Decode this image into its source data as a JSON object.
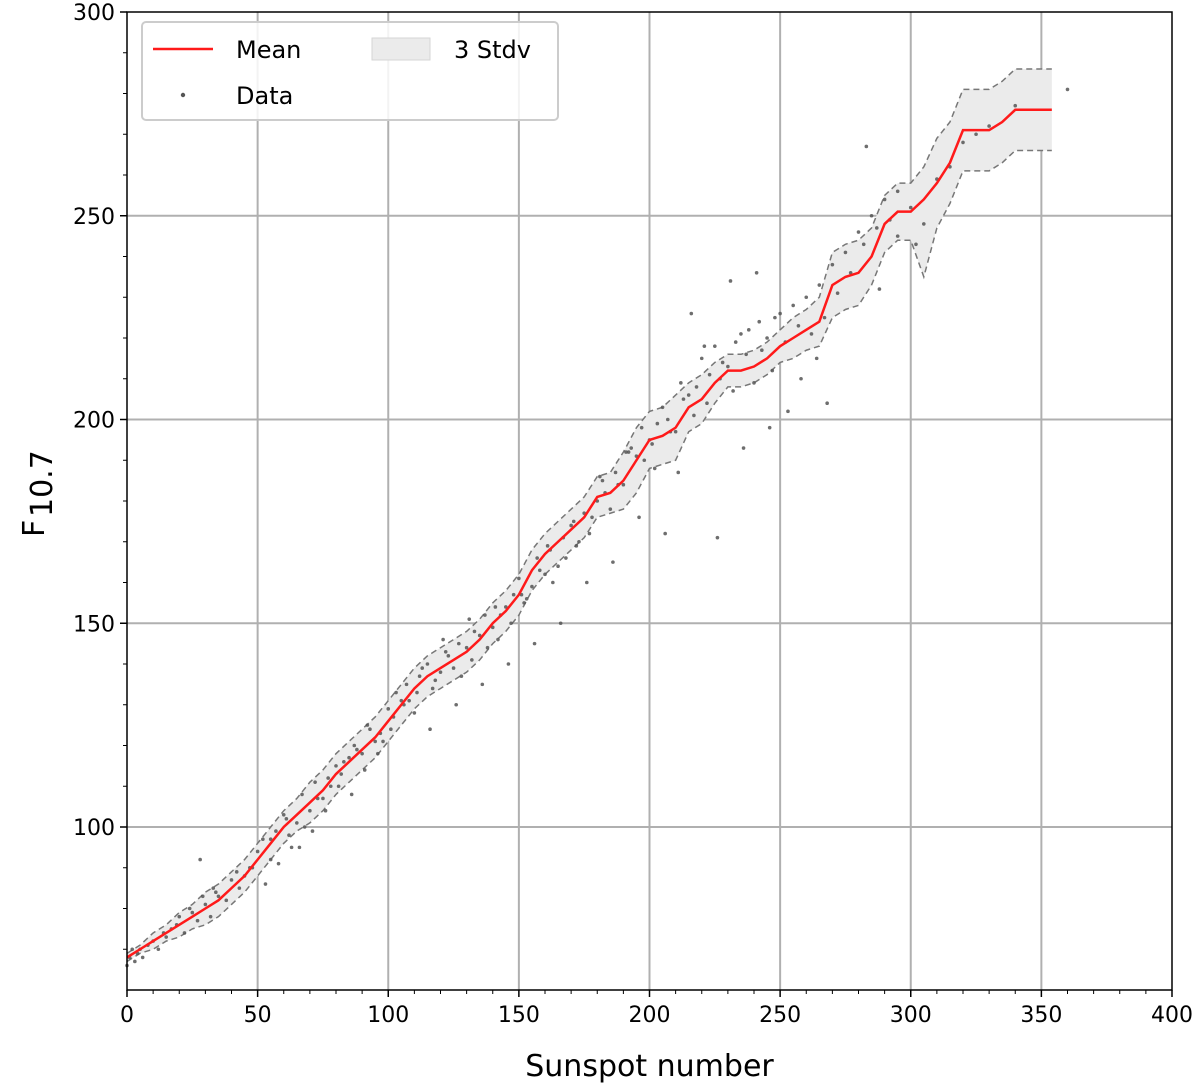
{
  "chart_data": {
    "type": "line",
    "xlabel": "Sunspot number",
    "ylabel_main": "F",
    "ylabel_sub": "10.7",
    "xlim": [
      0,
      400
    ],
    "ylim": [
      60,
      300
    ],
    "xticks": [
      0,
      50,
      100,
      150,
      200,
      250,
      300,
      350,
      400
    ],
    "yticks": [
      100,
      150,
      200,
      250,
      300
    ],
    "grid": true,
    "legend_position": "top-left",
    "legend": {
      "mean_label": "Mean",
      "band_label": "3 Stdv",
      "data_label": "Data"
    },
    "colors": {
      "mean": "#ff1a1a",
      "band_fill": "#ebebeb",
      "band_edge": "#777777",
      "data": "#555555",
      "grid": "#b0b0b0"
    },
    "series": [
      {
        "name": "Mean",
        "x": [
          0,
          5,
          10,
          15,
          20,
          25,
          30,
          35,
          40,
          45,
          50,
          55,
          60,
          65,
          70,
          75,
          80,
          85,
          90,
          95,
          100,
          105,
          110,
          115,
          120,
          125,
          130,
          135,
          140,
          145,
          150,
          155,
          160,
          165,
          170,
          175,
          180,
          185,
          190,
          195,
          200,
          205,
          210,
          215,
          220,
          225,
          230,
          235,
          240,
          245,
          250,
          255,
          260,
          265,
          270,
          275,
          280,
          285,
          290,
          295,
          300,
          305,
          310,
          315,
          320,
          325,
          330,
          335,
          340,
          345,
          350,
          354
        ],
        "y": [
          68,
          70,
          72,
          74,
          76,
          78,
          80,
          82,
          85,
          88,
          92,
          96,
          100,
          103,
          106,
          109,
          113,
          116,
          119,
          122,
          126,
          130,
          134,
          137,
          139,
          141,
          143,
          146,
          150,
          153,
          157,
          163,
          167,
          170,
          173,
          176,
          181,
          182,
          185,
          190,
          195,
          196,
          198,
          203,
          205,
          209,
          212,
          212,
          213,
          215,
          218,
          220,
          222,
          224,
          233,
          235,
          236,
          240,
          248,
          251,
          251,
          254,
          258,
          263,
          271,
          271,
          271,
          273,
          276,
          276,
          276,
          276
        ]
      },
      {
        "name": "3 Stdv",
        "x": [
          0,
          5,
          10,
          15,
          20,
          25,
          30,
          35,
          40,
          45,
          50,
          55,
          60,
          65,
          70,
          75,
          80,
          85,
          90,
          95,
          100,
          105,
          110,
          115,
          120,
          125,
          130,
          135,
          140,
          145,
          150,
          155,
          160,
          165,
          170,
          175,
          180,
          185,
          190,
          195,
          200,
          205,
          210,
          215,
          220,
          225,
          230,
          235,
          240,
          245,
          250,
          255,
          260,
          265,
          270,
          275,
          280,
          285,
          290,
          295,
          300,
          305,
          310,
          315,
          320,
          325,
          330,
          335,
          340,
          345,
          350,
          354
        ],
        "upper": [
          69,
          71,
          74,
          76,
          79,
          81,
          84,
          86,
          89,
          92,
          96,
          100,
          104,
          107,
          111,
          114,
          118,
          121,
          124,
          127,
          131,
          135,
          139,
          142,
          144,
          146,
          148,
          151,
          155,
          158,
          162,
          168,
          172,
          175,
          178,
          181,
          186,
          187,
          192,
          198,
          202,
          203,
          206,
          209,
          211,
          214,
          216,
          216,
          217,
          219,
          222,
          225,
          227,
          230,
          241,
          243,
          244,
          247,
          255,
          258,
          258,
          262,
          269,
          273,
          281,
          281,
          281,
          283,
          286,
          286,
          286,
          286
        ],
        "lower": [
          67,
          69,
          70,
          72,
          73,
          75,
          76,
          78,
          81,
          84,
          88,
          92,
          96,
          99,
          101,
          104,
          108,
          111,
          114,
          117,
          121,
          125,
          129,
          132,
          134,
          136,
          138,
          141,
          145,
          148,
          152,
          158,
          162,
          165,
          168,
          171,
          176,
          177,
          178,
          182,
          188,
          189,
          190,
          197,
          199,
          204,
          208,
          208,
          209,
          211,
          214,
          215,
          217,
          218,
          225,
          227,
          228,
          233,
          241,
          244,
          244,
          235,
          247,
          253,
          261,
          261,
          261,
          263,
          266,
          266,
          266,
          266
        ]
      },
      {
        "name": "Data",
        "x": [
          0,
          1,
          2,
          3,
          4,
          5,
          6,
          8,
          10,
          12,
          14,
          15,
          17,
          19,
          20,
          22,
          24,
          25,
          27,
          29,
          30,
          32,
          34,
          35,
          38,
          40,
          42,
          45,
          48,
          50,
          52,
          55,
          57,
          60,
          62,
          65,
          67,
          70,
          72,
          75,
          77,
          80,
          82,
          85,
          87,
          90,
          92,
          95,
          97,
          100,
          102,
          105,
          107,
          110,
          112,
          115,
          117,
          120,
          122,
          125,
          127,
          130,
          132,
          135,
          137,
          140,
          142,
          145,
          147,
          150,
          152,
          155,
          157,
          160,
          162,
          165,
          167,
          170,
          172,
          175,
          177,
          180,
          182,
          185,
          187,
          190,
          192,
          195,
          197,
          200,
          202,
          205,
          207,
          210,
          212,
          215,
          217,
          220,
          222,
          225,
          227,
          230,
          232,
          235,
          237,
          240,
          242,
          245,
          247,
          250,
          252,
          255,
          257,
          260,
          262,
          265,
          267,
          270,
          272,
          275,
          277,
          280,
          282,
          285,
          287,
          290,
          292,
          295,
          300,
          305,
          310,
          315,
          320,
          330,
          340,
          360,
          53,
          58,
          63,
          68,
          73,
          78,
          83,
          88,
          93,
          98,
          103,
          108,
          113,
          118,
          123,
          128,
          133,
          138,
          143,
          148,
          153,
          158,
          163,
          168,
          173,
          178,
          183,
          188,
          193,
          198,
          203,
          208,
          213,
          218,
          223,
          228,
          233,
          238,
          243,
          248,
          28,
          33,
          43,
          47,
          55,
          61,
          66,
          71,
          76,
          81,
          86,
          91,
          96,
          101,
          106,
          111,
          116,
          121,
          126,
          131,
          136,
          141,
          146,
          151,
          156,
          161,
          166,
          171,
          176,
          181,
          186,
          191,
          196,
          201,
          206,
          211,
          216,
          221,
          226,
          231,
          236,
          241,
          246,
          253,
          258,
          264,
          268,
          283,
          288,
          295,
          302,
          325
        ],
        "y": [
          66,
          68,
          70,
          67,
          69,
          70,
          68,
          71,
          72,
          70,
          74,
          73,
          75,
          76,
          78,
          74,
          80,
          79,
          77,
          83,
          81,
          78,
          84,
          83,
          82,
          87,
          89,
          88,
          90,
          94,
          97,
          92,
          99,
          103,
          98,
          101,
          108,
          104,
          111,
          107,
          112,
          115,
          113,
          117,
          120,
          118,
          125,
          121,
          123,
          129,
          127,
          131,
          135,
          128,
          137,
          140,
          134,
          138,
          143,
          139,
          145,
          144,
          141,
          147,
          152,
          149,
          146,
          154,
          150,
          161,
          155,
          159,
          166,
          162,
          168,
          164,
          171,
          174,
          169,
          177,
          172,
          180,
          185,
          178,
          187,
          184,
          192,
          191,
          198,
          195,
          188,
          203,
          200,
          197,
          209,
          206,
          201,
          215,
          204,
          218,
          210,
          213,
          207,
          221,
          216,
          209,
          224,
          220,
          212,
          226,
          219,
          228,
          223,
          230,
          221,
          233,
          225,
          238,
          231,
          241,
          236,
          246,
          243,
          250,
          247,
          254,
          249,
          256,
          252,
          248,
          259,
          262,
          268,
          272,
          277,
          281,
          86,
          91,
          95,
          100,
          107,
          110,
          116,
          119,
          124,
          121,
          133,
          131,
          139,
          136,
          142,
          137,
          148,
          144,
          152,
          157,
          156,
          163,
          160,
          166,
          170,
          176,
          182,
          184,
          193,
          190,
          199,
          197,
          205,
          208,
          211,
          214,
          219,
          222,
          217,
          225,
          92,
          85,
          85,
          90,
          97,
          102,
          95,
          99,
          104,
          110,
          108,
          114,
          118,
          124,
          130,
          133,
          124,
          146,
          130,
          151,
          135,
          154,
          140,
          157,
          145,
          169,
          150,
          175,
          160,
          186,
          165,
          192,
          176,
          194,
          172,
          187,
          226,
          218,
          171,
          234,
          193,
          236,
          198,
          202,
          210,
          215,
          204,
          267,
          232,
          245,
          243,
          270
        ]
      }
    ]
  }
}
